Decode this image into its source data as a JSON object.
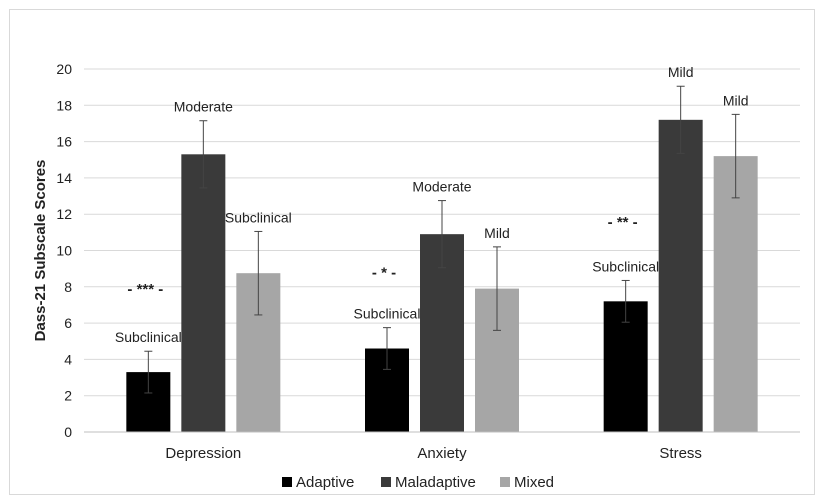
{
  "chart_data": {
    "type": "bar",
    "title": "",
    "xlabel": "",
    "ylabel": "Dass-21 Subscale Scores",
    "ylim": [
      0,
      20
    ],
    "yticks": [
      "0",
      "2",
      "4",
      "6",
      "8",
      "10",
      "12",
      "14",
      "16",
      "18",
      "20"
    ],
    "grid": true,
    "legend_position": "bottom",
    "categories": [
      "Depression",
      "Anxiety",
      "Stress"
    ],
    "series": [
      {
        "name": "Adaptive",
        "color": "#000000",
        "values": [
          3.3,
          4.6,
          7.2
        ],
        "error": [
          1.15,
          1.15,
          1.15
        ],
        "labels": [
          "Subclinical",
          "Subclinical",
          "Subclinical"
        ]
      },
      {
        "name": "Maladaptive",
        "color": "#3a3a3a",
        "values": [
          15.3,
          10.9,
          17.2
        ],
        "error": [
          1.85,
          1.85,
          1.85
        ],
        "labels": [
          "Moderate",
          "Moderate",
          "Mild"
        ]
      },
      {
        "name": "Mixed",
        "color": "#a6a6a6",
        "values": [
          8.75,
          7.9,
          15.2
        ],
        "error": [
          2.3,
          2.3,
          2.3
        ],
        "labels": [
          "Subclinical",
          "Mild",
          "Mild"
        ]
      }
    ],
    "significance": [
      "- *** -",
      "- * -",
      "- ** -"
    ],
    "significance_level": [
      7.6,
      8.5,
      11.3
    ]
  }
}
